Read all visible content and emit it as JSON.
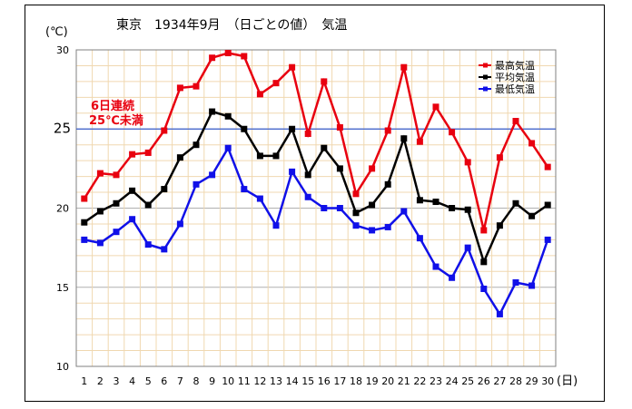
{
  "chart_data": {
    "type": "line",
    "title": "東京　1934年9月　（日ごとの値）　気温",
    "ylabel": "(℃)",
    "xlabel": "(日)",
    "ylim": [
      10,
      30
    ],
    "yticks": [
      10,
      15,
      20,
      25,
      30
    ],
    "reference_line": {
      "value": 25,
      "label": "25",
      "color": "#3a5fcd"
    },
    "annotation": {
      "lines": [
        "6日連続",
        "25℃未満"
      ],
      "color": "#e8000f"
    },
    "categories": [
      "1",
      "2",
      "3",
      "4",
      "5",
      "6",
      "7",
      "8",
      "9",
      "10",
      "11",
      "12",
      "13",
      "14",
      "15",
      "16",
      "17",
      "18",
      "19",
      "20",
      "21",
      "22",
      "23",
      "24",
      "25",
      "26",
      "27",
      "28",
      "29",
      "30"
    ],
    "series": [
      {
        "name": "最高気温",
        "color": "#e8000f",
        "values": [
          20.6,
          22.2,
          22.1,
          23.4,
          23.5,
          24.9,
          27.6,
          27.7,
          29.5,
          29.8,
          29.6,
          27.2,
          27.9,
          28.9,
          24.7,
          28.0,
          25.1,
          20.9,
          22.5,
          24.9,
          28.9,
          24.2,
          26.4,
          24.8,
          22.9,
          18.6,
          23.2,
          25.5,
          24.1,
          22.6
        ]
      },
      {
        "name": "平均気温",
        "color": "#000000",
        "values": [
          19.1,
          19.8,
          20.3,
          21.1,
          20.2,
          21.2,
          23.2,
          24.0,
          26.1,
          25.8,
          25.0,
          23.3,
          23.3,
          25.0,
          22.1,
          23.8,
          22.5,
          19.7,
          20.2,
          21.5,
          24.4,
          20.5,
          20.4,
          20.0,
          19.9,
          16.6,
          18.9,
          20.3,
          19.5,
          20.2
        ]
      },
      {
        "name": "最低気温",
        "color": "#1010e8",
        "values": [
          18.0,
          17.8,
          18.5,
          19.3,
          17.7,
          17.4,
          19.0,
          21.5,
          22.1,
          23.8,
          21.2,
          20.6,
          18.9,
          22.3,
          20.7,
          20.0,
          20.0,
          18.9,
          18.6,
          18.8,
          19.8,
          18.1,
          16.3,
          15.6,
          17.5,
          14.9,
          13.3,
          15.3,
          15.1,
          18.0
        ]
      }
    ]
  }
}
